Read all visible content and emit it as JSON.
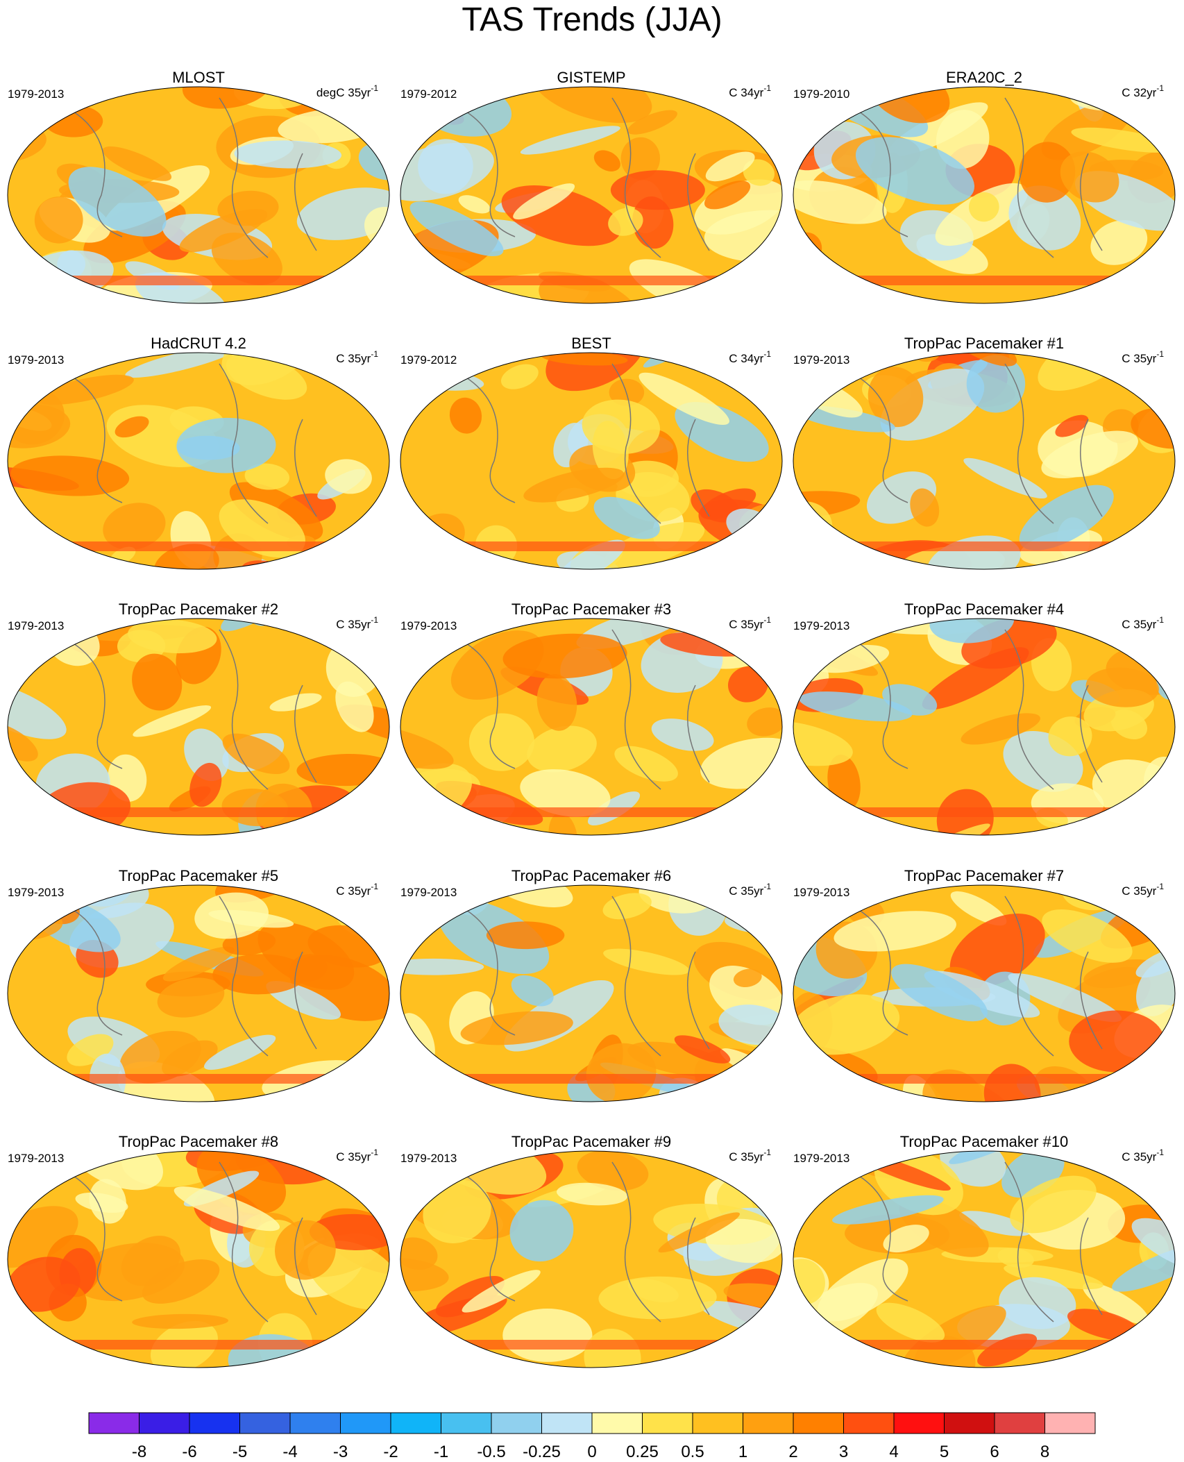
{
  "title": "TAS Trends (JJA)",
  "panels": [
    {
      "title": "MLOST",
      "period": "1979-2013",
      "units": "degC 35yr",
      "units_sup": "-1"
    },
    {
      "title": "GISTEMP",
      "period": "1979-2012",
      "units": "C 34yr",
      "units_sup": "-1"
    },
    {
      "title": "ERA20C_2",
      "period": "1979-2010",
      "units": "C 32yr",
      "units_sup": "-1"
    },
    {
      "title": "HadCRUT 4.2",
      "period": "1979-2013",
      "units": "C 35yr",
      "units_sup": "-1"
    },
    {
      "title": "BEST",
      "period": "1979-2012",
      "units": "C 34yr",
      "units_sup": "-1"
    },
    {
      "title": "TropPac Pacemaker #1",
      "period": "1979-2013",
      "units": "C 35yr",
      "units_sup": "-1"
    },
    {
      "title": "TropPac Pacemaker #2",
      "period": "1979-2013",
      "units": "C 35yr",
      "units_sup": "-1"
    },
    {
      "title": "TropPac Pacemaker #3",
      "period": "1979-2013",
      "units": "C 35yr",
      "units_sup": "-1"
    },
    {
      "title": "TropPac Pacemaker #4",
      "period": "1979-2013",
      "units": "C 35yr",
      "units_sup": "-1"
    },
    {
      "title": "TropPac Pacemaker #5",
      "period": "1979-2013",
      "units": "C 35yr",
      "units_sup": "-1"
    },
    {
      "title": "TropPac Pacemaker #6",
      "period": "1979-2013",
      "units": "C 35yr",
      "units_sup": "-1"
    },
    {
      "title": "TropPac Pacemaker #7",
      "period": "1979-2013",
      "units": "C 35yr",
      "units_sup": "-1"
    },
    {
      "title": "TropPac Pacemaker #8",
      "period": "1979-2013",
      "units": "C 35yr",
      "units_sup": "-1"
    },
    {
      "title": "TropPac Pacemaker #9",
      "period": "1979-2013",
      "units": "C 35yr",
      "units_sup": "-1"
    },
    {
      "title": "TropPac Pacemaker #10",
      "period": "1979-2013",
      "units": "C 35yr",
      "units_sup": "-1"
    }
  ],
  "colorbar": {
    "colors": [
      "#8a2be8",
      "#3a1ee6",
      "#1732f0",
      "#3562e0",
      "#2f80ee",
      "#2098f8",
      "#10b4f8",
      "#48c0f0",
      "#90d0ee",
      "#c0e4f6",
      "#fffaaa",
      "#ffe24a",
      "#ffc020",
      "#ffa010",
      "#ff8000",
      "#ff5010",
      "#ff1010",
      "#d01010",
      "#e04040",
      "#ffb2b2"
    ],
    "levels": [
      -8,
      -6,
      -5,
      -4,
      -3,
      -2,
      -1,
      -0.5,
      -0.25,
      0,
      0.25,
      0.5,
      1,
      2,
      3,
      4,
      5,
      6,
      8
    ]
  }
}
